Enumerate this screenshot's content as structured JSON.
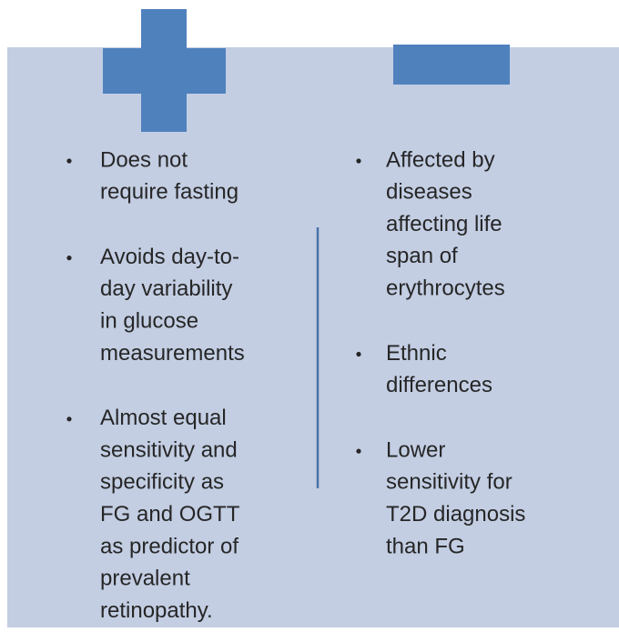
{
  "columns": [
    {
      "items": [
        {
          "lines": [
            "Does not",
            "require fasting"
          ]
        },
        {
          "lines": [
            "Avoids day-to-",
            "day variability",
            "in glucose",
            "measurements"
          ]
        },
        {
          "lines": [
            "Almost equal",
            "sensitivity and",
            "specificity as",
            "FG and OGTT",
            "as predictor of",
            "prevalent",
            "retinopathy."
          ]
        }
      ]
    },
    {
      "items": [
        {
          "lines": [
            "Affected by",
            "diseases",
            "affecting life",
            "span of",
            "erythrocytes"
          ]
        },
        {
          "lines": [
            "Ethnic",
            "differences"
          ]
        },
        {
          "lines": [
            "Lower",
            "sensitivity for",
            "T2D diagnosis",
            "than FG"
          ]
        }
      ]
    }
  ]
}
